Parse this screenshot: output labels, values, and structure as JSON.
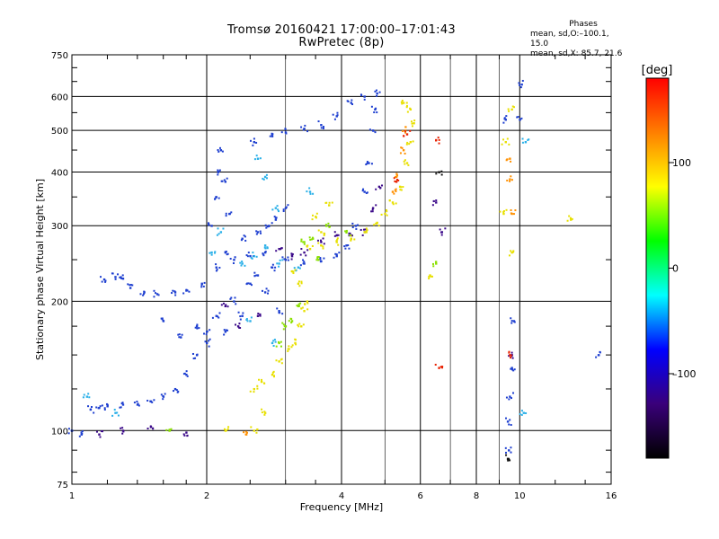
{
  "title_line1": "Tromsø 20160421 17:00:00–17:01:43",
  "title_line2": "RwPretec (8p)",
  "stats": {
    "heading": "Phases",
    "line_o": "mean, sd,O:–100.1, 15.0",
    "line_x": "mean, sd,X:  85.7, 21.6"
  },
  "chart_data": {
    "type": "scatter",
    "xlabel": "Frequency [MHz]",
    "ylabel": "Stationary phase Virtual Height [km]",
    "x_scale": "log",
    "y_scale": "log",
    "xlim": [
      1,
      16
    ],
    "ylim": [
      75,
      750
    ],
    "x_ticks": [
      1,
      2,
      4,
      6,
      8,
      10,
      16
    ],
    "y_ticks": [
      75,
      100,
      200,
      300,
      400,
      500,
      600,
      750
    ],
    "x_tick_labels": [
      "1",
      "2",
      "4",
      "6",
      "8",
      "10",
      "16"
    ],
    "y_tick_labels": [
      "75",
      "100",
      "200",
      "300",
      "400",
      "500",
      "600",
      "750"
    ],
    "grid": true,
    "colorbar": {
      "label": "[deg]",
      "range": [
        -180,
        180
      ],
      "ticks": [
        100,
        0,
        -100
      ],
      "tick_labels": [
        "100",
        "0",
        "–100"
      ],
      "colors": [
        "#000000",
        "#3a007a",
        "#0000ff",
        "#00ffff",
        "#00ff00",
        "#ffff00",
        "#ff7f00",
        "#ff0000"
      ]
    },
    "series": [
      {
        "color": "#1e3fd0",
        "points": [
          [
            1.0,
            100
          ],
          [
            1.05,
            98
          ],
          [
            1.1,
            112
          ],
          [
            1.15,
            113
          ],
          [
            1.2,
            114
          ],
          [
            1.3,
            115
          ],
          [
            1.4,
            115
          ],
          [
            1.5,
            117
          ],
          [
            1.6,
            120
          ],
          [
            1.7,
            125
          ],
          [
            1.8,
            135
          ],
          [
            1.9,
            150
          ],
          [
            2.0,
            170
          ],
          [
            1.18,
            225
          ],
          [
            1.25,
            228
          ],
          [
            1.3,
            226
          ],
          [
            1.35,
            215
          ],
          [
            1.45,
            210
          ],
          [
            1.55,
            208
          ],
          [
            1.7,
            210
          ],
          [
            1.8,
            212
          ],
          [
            1.95,
            220
          ],
          [
            2.1,
            240
          ],
          [
            2.2,
            260
          ],
          [
            2.3,
            250
          ],
          [
            2.5,
            255
          ],
          [
            2.7,
            260
          ],
          [
            3.0,
            250
          ],
          [
            3.3,
            245
          ],
          [
            3.6,
            248
          ],
          [
            3.9,
            255
          ],
          [
            4.1,
            270
          ],
          [
            4.3,
            300
          ],
          [
            4.5,
            360
          ],
          [
            4.6,
            420
          ],
          [
            4.7,
            500
          ],
          [
            4.75,
            560
          ],
          [
            4.8,
            610
          ],
          [
            2.55,
            470
          ],
          [
            2.8,
            485
          ],
          [
            3.0,
            495
          ],
          [
            3.3,
            505
          ],
          [
            3.6,
            515
          ],
          [
            3.9,
            540
          ],
          [
            4.2,
            580
          ],
          [
            4.5,
            600
          ],
          [
            2.05,
            300
          ],
          [
            2.1,
            350
          ],
          [
            2.12,
            400
          ],
          [
            2.15,
            450
          ],
          [
            2.2,
            380
          ],
          [
            2.25,
            320
          ],
          [
            2.4,
            280
          ],
          [
            2.6,
            290
          ],
          [
            2.75,
            300
          ],
          [
            2.85,
            310
          ],
          [
            3.0,
            330
          ],
          [
            2.3,
            200
          ],
          [
            2.4,
            185
          ],
          [
            2.5,
            220
          ],
          [
            2.7,
            210
          ],
          [
            2.9,
            190
          ],
          [
            2.2,
            170
          ],
          [
            2.0,
            160
          ],
          [
            1.9,
            175
          ],
          [
            2.1,
            185
          ],
          [
            1.6,
            180
          ],
          [
            1.75,
            165
          ],
          [
            2.6,
            230
          ],
          [
            2.8,
            240
          ],
          [
            9.7,
            180
          ],
          [
            9.6,
            140
          ],
          [
            9.5,
            120
          ],
          [
            9.4,
            105
          ],
          [
            9.45,
            90
          ],
          [
            15.0,
            150
          ],
          [
            10.1,
            640
          ],
          [
            10.0,
            530
          ],
          [
            9.3,
            530
          ]
        ]
      },
      {
        "color": "#3c0a8a",
        "points": [
          [
            1.15,
            98
          ],
          [
            1.3,
            100
          ],
          [
            1.5,
            102
          ],
          [
            1.8,
            99
          ],
          [
            2.2,
            195
          ],
          [
            2.35,
            175
          ],
          [
            2.6,
            185
          ],
          [
            2.9,
            265
          ],
          [
            3.1,
            255
          ],
          [
            3.3,
            260
          ],
          [
            3.6,
            275
          ],
          [
            3.9,
            285
          ],
          [
            4.2,
            285
          ],
          [
            4.5,
            290
          ],
          [
            4.7,
            330
          ],
          [
            4.85,
            370
          ],
          [
            6.5,
            340
          ],
          [
            6.7,
            290
          ],
          [
            9.6,
            150
          ]
        ]
      },
      {
        "color": "#2ab0e8",
        "points": [
          [
            1.08,
            120
          ],
          [
            1.25,
            110
          ],
          [
            2.4,
            245
          ],
          [
            2.55,
            255
          ],
          [
            2.7,
            270
          ],
          [
            2.9,
            245
          ],
          [
            3.2,
            240
          ],
          [
            2.5,
            180
          ],
          [
            2.8,
            160
          ],
          [
            2.05,
            260
          ],
          [
            2.15,
            290
          ],
          [
            2.7,
            390
          ],
          [
            2.85,
            330
          ],
          [
            2.6,
            430
          ],
          [
            3.4,
            360
          ],
          [
            10.3,
            470
          ],
          [
            10.2,
            110
          ]
        ]
      },
      {
        "color": "#e8e000",
        "points": [
          [
            2.55,
            125
          ],
          [
            2.65,
            130
          ],
          [
            2.8,
            135
          ],
          [
            2.9,
            145
          ],
          [
            3.05,
            155
          ],
          [
            3.15,
            160
          ],
          [
            3.25,
            175
          ],
          [
            3.3,
            190
          ],
          [
            3.35,
            200
          ],
          [
            3.2,
            220
          ],
          [
            3.1,
            235
          ],
          [
            3.4,
            265
          ],
          [
            3.6,
            270
          ],
          [
            3.9,
            275
          ],
          [
            4.2,
            280
          ],
          [
            4.5,
            290
          ],
          [
            4.8,
            305
          ],
          [
            5.0,
            320
          ],
          [
            5.2,
            340
          ],
          [
            5.4,
            370
          ],
          [
            5.6,
            420
          ],
          [
            5.7,
            470
          ],
          [
            5.8,
            520
          ],
          [
            5.7,
            560
          ],
          [
            5.5,
            580
          ],
          [
            3.5,
            315
          ],
          [
            3.75,
            335
          ],
          [
            3.6,
            290
          ],
          [
            9.6,
            560
          ],
          [
            9.3,
            470
          ],
          [
            9.2,
            320
          ],
          [
            9.6,
            260
          ],
          [
            13.0,
            310
          ],
          [
            6.3,
            230
          ],
          [
            2.7,
            110
          ],
          [
            2.55,
            100
          ],
          [
            2.2,
            100
          ]
        ]
      },
      {
        "color": "#8ae000",
        "points": [
          [
            3.0,
            175
          ],
          [
            3.1,
            180
          ],
          [
            3.2,
            195
          ],
          [
            2.9,
            160
          ],
          [
            3.45,
            280
          ],
          [
            3.3,
            275
          ],
          [
            3.7,
            300
          ],
          [
            3.55,
            250
          ],
          [
            4.1,
            290
          ],
          [
            1.65,
            100
          ],
          [
            6.5,
            245
          ]
        ]
      },
      {
        "color": "#ff9000",
        "points": [
          [
            5.2,
            360
          ],
          [
            5.3,
            390
          ],
          [
            5.5,
            450
          ],
          [
            5.55,
            500
          ],
          [
            9.5,
            430
          ],
          [
            9.5,
            385
          ],
          [
            9.6,
            320
          ],
          [
            2.45,
            98
          ]
        ]
      },
      {
        "color": "#e82000",
        "points": [
          [
            5.3,
            380
          ],
          [
            5.6,
            490
          ],
          [
            6.6,
            140
          ],
          [
            6.5,
            475
          ],
          [
            9.5,
            150
          ]
        ]
      },
      {
        "color": "#101010",
        "points": [
          [
            6.6,
            400
          ],
          [
            9.4,
            86
          ]
        ]
      }
    ]
  }
}
